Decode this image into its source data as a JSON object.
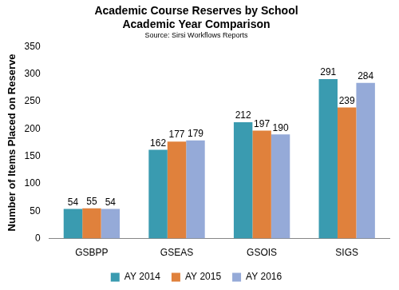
{
  "chart_data": {
    "type": "bar",
    "title": [
      "Academic Course Reserves by School",
      "Academic Year Comparison"
    ],
    "subtitle": "Source: Sirsi Workflows Reports",
    "y_label": "Number of Items Placed on Reserve",
    "categories": [
      "GSBPP",
      "GSEAS",
      "GSOIS",
      "SIGS"
    ],
    "series": [
      {
        "name": "AY 2014",
        "color": "#3a9bb0",
        "values": [
          54,
          162,
          212,
          291
        ]
      },
      {
        "name": "AY 2015",
        "color": "#e0813c",
        "values": [
          55,
          177,
          197,
          239
        ]
      },
      {
        "name": "AY 2016",
        "color": "#95aad8",
        "values": [
          54,
          179,
          190,
          284
        ]
      }
    ],
    "ylim": [
      0,
      350
    ],
    "yticks": [
      0,
      50,
      100,
      150,
      200,
      250,
      300,
      350
    ],
    "grid": false,
    "legend": "bottom",
    "data_labels": true
  }
}
